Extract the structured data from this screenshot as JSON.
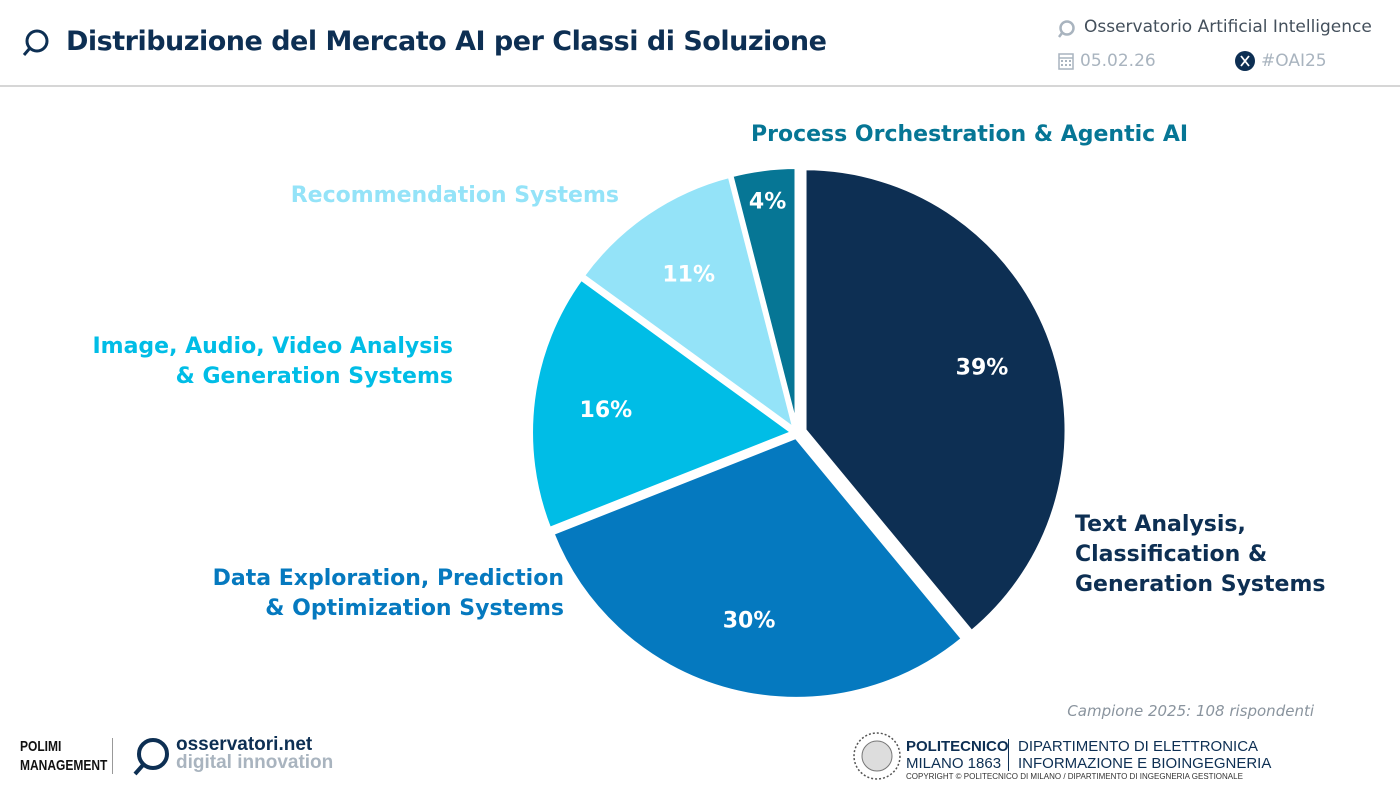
{
  "header": {
    "title": "Distribuzione del Mercato AI per Classi di Soluzione",
    "observatory": "Osservatorio Artificial Intelligence",
    "date": "05.02.26",
    "hashtag": "#OAI25",
    "icons": [
      "magnifier-logo-icon",
      "calendar-icon",
      "x-social-icon"
    ]
  },
  "chart_data": {
    "type": "pie",
    "title": "Distribuzione del Mercato AI per Classi di Soluzione",
    "start": "top",
    "direction": "clockwise",
    "slices": [
      {
        "label": "Text Analysis, Classification & Generation Systems",
        "value": 39,
        "display": "39%",
        "color": "#0d2f53"
      },
      {
        "label": "Data Exploration, Prediction & Optimization Systems",
        "value": 30,
        "display": "30%",
        "color": "#0579bf"
      },
      {
        "label": "Image, Audio, Video Analysis & Generation Systems",
        "value": 16,
        "display": "16%",
        "color": "#00bde6"
      },
      {
        "label": "Recommendation Systems",
        "value": 11,
        "display": "11%",
        "color": "#94e3f8"
      },
      {
        "label": "Process Orchestration & Agentic AI",
        "value": 4,
        "display": "4%",
        "color": "#067695"
      }
    ],
    "label_lines": [
      [
        "Text Analysis,",
        "Classification &",
        "Generation Systems"
      ],
      [
        "Data Exploration, Prediction",
        "& Optimization Systems"
      ],
      [
        "Image, Audio, Video Analysis",
        "& Generation Systems"
      ],
      [
        "Recommendation Systems"
      ],
      [
        "Process Orchestration & Agentic AI"
      ]
    ]
  },
  "footer": {
    "sample": "Campione 2025: 108 rispondenti",
    "polimi_logo": "POLIMI SCHOOL OF MANAGEMENT",
    "osservatori_logo": [
      "osservatori.net",
      "digital innovation"
    ],
    "politecnico": [
      "POLITECNICO",
      "MILANO 1863"
    ],
    "department": [
      "DIPARTIMENTO DI ELETTRONICA",
      "INFORMAZIONE E BIOINGEGNERIA"
    ],
    "copyright": "COPYRIGHT © POLITECNICO DI MILANO / DIPARTIMENTO DI INGEGNERIA GESTIONALE"
  }
}
